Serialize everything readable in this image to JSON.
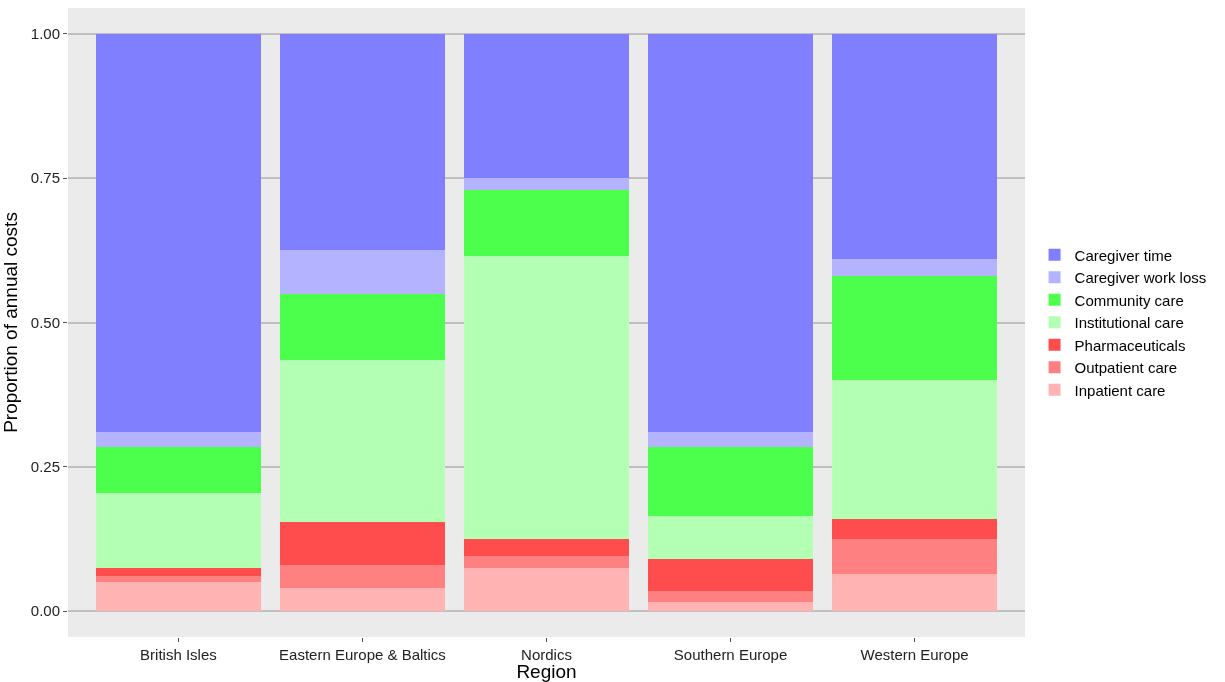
{
  "chart_data": {
    "type": "bar",
    "stacked": true,
    "xlabel": "Region",
    "ylabel": "Proportion of annual costs",
    "categories": [
      "British Isles",
      "Eastern Europe & Baltics",
      "Nordics",
      "Southern Europe",
      "Western Europe"
    ],
    "series": [
      {
        "name": "Inpatient care",
        "color": "#ffb3b3",
        "values": [
          0.05,
          0.04,
          0.075,
          0.015,
          0.065
        ]
      },
      {
        "name": "Outpatient care",
        "color": "#ff8080",
        "values": [
          0.01,
          0.04,
          0.02,
          0.02,
          0.06
        ]
      },
      {
        "name": "Pharmaceuticals",
        "color": "#ff4d4d",
        "values": [
          0.015,
          0.075,
          0.03,
          0.055,
          0.035
        ]
      },
      {
        "name": "Institutional care",
        "color": "#b3ffb3",
        "values": [
          0.13,
          0.28,
          0.49,
          0.075,
          0.24
        ]
      },
      {
        "name": "Community care",
        "color": "#4dff4d",
        "values": [
          0.08,
          0.115,
          0.115,
          0.12,
          0.18
        ]
      },
      {
        "name": "Caregiver work loss",
        "color": "#b3b3ff",
        "values": [
          0.025,
          0.075,
          0.02,
          0.025,
          0.03
        ]
      },
      {
        "name": "Caregiver time",
        "color": "#8080ff",
        "values": [
          0.69,
          0.375,
          0.25,
          0.69,
          0.39
        ]
      }
    ],
    "ylim": [
      -0.045,
      1.045
    ],
    "yticks": [
      {
        "value": 0,
        "label": "0.00"
      },
      {
        "value": 0.25,
        "label": "0.25"
      },
      {
        "value": 0.5,
        "label": "0.50"
      },
      {
        "value": 0.75,
        "label": "0.75"
      },
      {
        "value": 1,
        "label": "1.00"
      }
    ],
    "grid": "y",
    "legend": "right"
  }
}
